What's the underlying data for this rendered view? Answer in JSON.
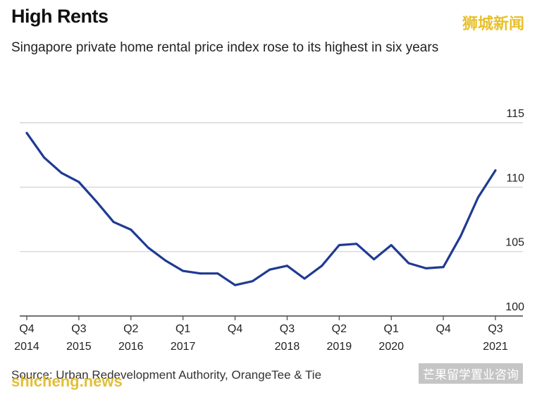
{
  "title": "High Rents",
  "subtitle": "Singapore private home rental price index rose to its highest in six years",
  "watermark_top": "狮城新闻",
  "watermark_bottom": "shicheng.news",
  "watermark_right": "芒果留学置业咨询",
  "source": "Source: Urban Redevelopment Authority, OrangeTee & Tie",
  "colors": {
    "line": "#1f3a93",
    "grid": "#cfcfcf",
    "axis": "#444444"
  },
  "chart_data": {
    "type": "line",
    "title": "High Rents",
    "subtitle": "Singapore private home rental price index rose to its highest in six years",
    "xlabel": "",
    "ylabel": "",
    "ylim": [
      100,
      115
    ],
    "yticks": [
      100,
      105,
      110,
      115
    ],
    "grid": true,
    "x_tick_labels": [
      {
        "line1": "Q4",
        "line2": "2014",
        "index": 0
      },
      {
        "line1": "Q3",
        "line2": "2015",
        "index": 3
      },
      {
        "line1": "Q2",
        "line2": "2016",
        "index": 6
      },
      {
        "line1": "Q1",
        "line2": "2017",
        "index": 9
      },
      {
        "line1": "Q4",
        "line2": "",
        "index": 12
      },
      {
        "line1": "Q3",
        "line2": "2018",
        "index": 15
      },
      {
        "line1": "Q2",
        "line2": "2019",
        "index": 18
      },
      {
        "line1": "Q1",
        "line2": "2020",
        "index": 21
      },
      {
        "line1": "Q4",
        "line2": "",
        "index": 24
      },
      {
        "line1": "Q3",
        "line2": "2021",
        "index": 27
      }
    ],
    "x": [
      "Q4 2014",
      "Q1 2015",
      "Q2 2015",
      "Q3 2015",
      "Q4 2015",
      "Q1 2016",
      "Q2 2016",
      "Q3 2016",
      "Q4 2016",
      "Q1 2017",
      "Q2 2017",
      "Q3 2017",
      "Q4 2017",
      "Q1 2018",
      "Q2 2018",
      "Q3 2018",
      "Q4 2018",
      "Q1 2019",
      "Q2 2019",
      "Q3 2019",
      "Q4 2019",
      "Q1 2020",
      "Q2 2020",
      "Q3 2020",
      "Q4 2020",
      "Q1 2021",
      "Q2 2021",
      "Q3 2021"
    ],
    "series": [
      {
        "name": "",
        "values": [
          114.2,
          112.3,
          111.1,
          110.4,
          108.9,
          107.3,
          106.7,
          105.3,
          104.3,
          103.5,
          103.3,
          103.3,
          102.4,
          102.7,
          103.6,
          103.9,
          102.9,
          103.9,
          105.5,
          105.6,
          104.4,
          105.5,
          104.1,
          103.7,
          103.8,
          106.2,
          109.2,
          111.3
        ]
      }
    ]
  }
}
